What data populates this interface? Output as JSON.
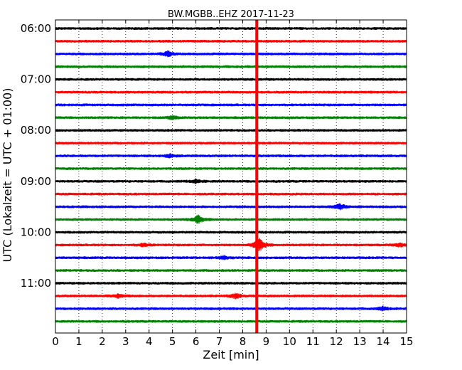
{
  "chart_data": {
    "type": "line",
    "title": "BW.MGBB..EHZ 2017-11-23",
    "xlabel": "Zeit  [min]",
    "ylabel": "UTC (Lokalzeit = UTC + 01:00)",
    "xlim": [
      0,
      15
    ],
    "x_ticks": [
      "0",
      "1",
      "2",
      "3",
      "4",
      "5",
      "6",
      "7",
      "8",
      "9",
      "10",
      "11",
      "12",
      "13",
      "14",
      "15"
    ],
    "y_ticks": [
      {
        "label": "06:00",
        "row": 0
      },
      {
        "label": "07:00",
        "row": 4
      },
      {
        "label": "08:00",
        "row": 8
      },
      {
        "label": "09:00",
        "row": 12
      },
      {
        "label": "10:00",
        "row": 16
      },
      {
        "label": "11:00",
        "row": 20
      }
    ],
    "row_minutes": 15,
    "row_count": 24,
    "start_time": "06:00",
    "row_colors": [
      "#000000",
      "#ff0000",
      "#0000ff",
      "#008000"
    ],
    "grid": "vertical-dotted",
    "event_line": {
      "minute": 8.6,
      "color": "#ff0000"
    },
    "events": [
      {
        "row": 2,
        "minute": 4.8,
        "amp": 3
      },
      {
        "row": 7,
        "minute": 5.0,
        "amp": 2
      },
      {
        "row": 10,
        "minute": 4.9,
        "amp": 2
      },
      {
        "row": 12,
        "minute": 6.0,
        "amp": 2
      },
      {
        "row": 14,
        "minute": 12.15,
        "amp": 4
      },
      {
        "row": 15,
        "minute": 6.1,
        "amp": 5
      },
      {
        "row": 17,
        "minute": 8.7,
        "amp": 8
      },
      {
        "row": 17,
        "minute": 3.8,
        "amp": 2
      },
      {
        "row": 17,
        "minute": 14.7,
        "amp": 2
      },
      {
        "row": 18,
        "minute": 7.2,
        "amp": 2
      },
      {
        "row": 21,
        "minute": 7.7,
        "amp": 3
      },
      {
        "row": 21,
        "minute": 2.7,
        "amp": 2
      },
      {
        "row": 22,
        "minute": 14.0,
        "amp": 2
      }
    ]
  }
}
